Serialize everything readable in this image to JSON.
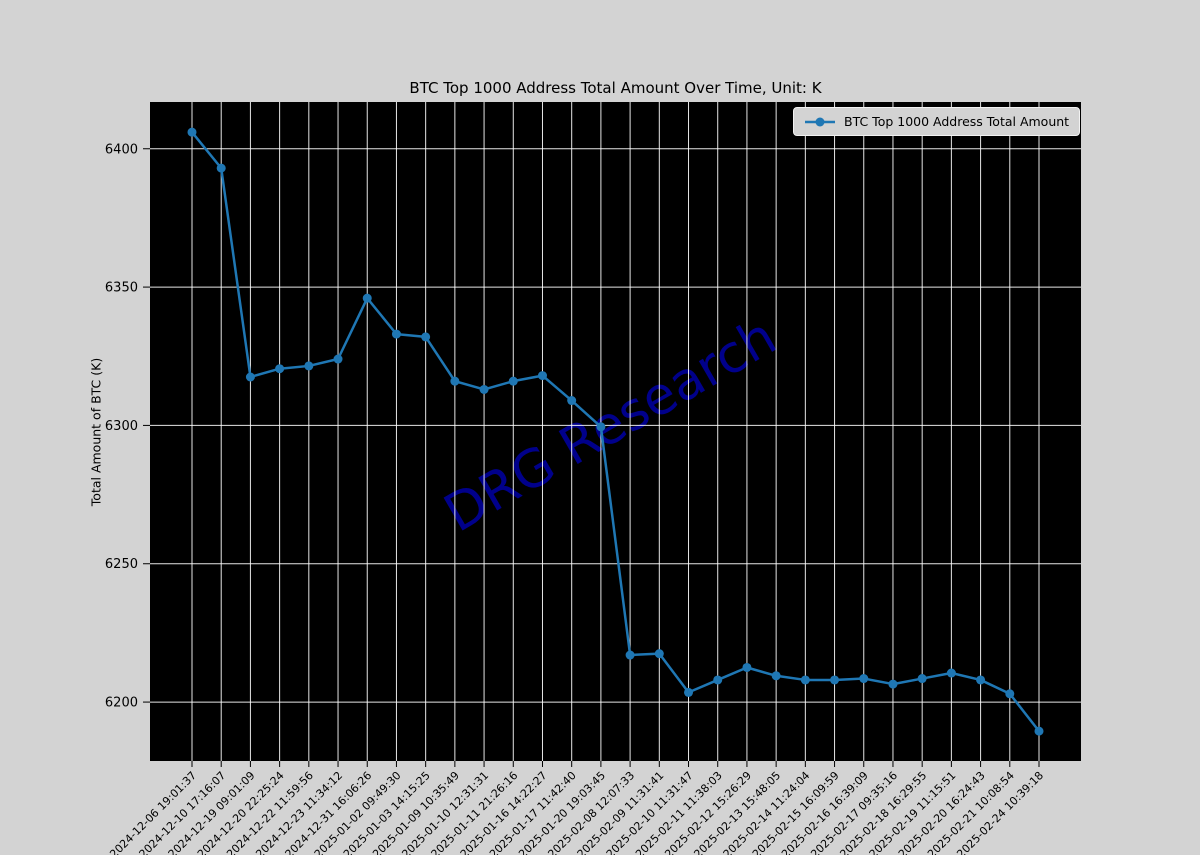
{
  "page": {
    "figure_bg": "#d3d3d3"
  },
  "watermark": {
    "text": "DRG Research",
    "color": "#00008b",
    "rotation_deg": -30,
    "font_size": 52
  },
  "chart_data": {
    "type": "line",
    "title": "BTC Top 1000 Address Total Amount Over Time, Unit: K",
    "ylabel": "Total Amount of BTC (K)",
    "xlabel": "",
    "grid": true,
    "figure_bg": "#d3d3d3",
    "axes_bg": "#000000",
    "grid_color": "#ffffff",
    "tick_color": "#000000",
    "text_color": "#000000",
    "ylim": [
      6178.7,
      6416.9
    ],
    "yticks": [
      6200,
      6250,
      6300,
      6350,
      6400
    ],
    "legend": {
      "position": "upper right",
      "entries": [
        "BTC Top 1000 Address Total Amount"
      ]
    },
    "categories": [
      "2024-12-06 19:01:37",
      "2024-12-10 17:16:07",
      "2024-12-19 09:01:09",
      "2024-12-20 22:25:24",
      "2024-12-22 11:59:56",
      "2024-12-23 11:34:12",
      "2024-12-31 16:06:26",
      "2025-01-02 09:49:30",
      "2025-01-03 14:15:25",
      "2025-01-09 10:35:49",
      "2025-01-10 12:31:31",
      "2025-01-11 21:26:16",
      "2025-01-16 14:22:27",
      "2025-01-17 11:42:40",
      "2025-01-20 19:03:45",
      "2025-02-08 12:07:33",
      "2025-02-09 11:31:41",
      "2025-02-10 11:31:47",
      "2025-02-11 11:38:03",
      "2025-02-12 15:26:29",
      "2025-02-13 15:48:05",
      "2025-02-14 11:24:04",
      "2025-02-15 16:09:59",
      "2025-02-16 16:39:09",
      "2025-02-17 09:35:16",
      "2025-02-18 16:29:55",
      "2025-02-19 11:15:51",
      "2025-02-20 16:24:43",
      "2025-02-21 10:08:54",
      "2025-02-24 10:39:18"
    ],
    "series": [
      {
        "name": "BTC Top 1000 Address Total Amount",
        "color": "#1f77b4",
        "marker": "circle",
        "values": [
          6406,
          6393,
          6317.5,
          6320.5,
          6321.5,
          6324,
          6346,
          6333,
          6332,
          6316,
          6313,
          6316,
          6318,
          6309,
          6299.5,
          6217,
          6217.5,
          6203.5,
          6208,
          6212.5,
          6209.5,
          6208,
          6208,
          6208.5,
          6206.5,
          6208.5,
          6210.5,
          6208,
          6203,
          6189.5
        ]
      }
    ]
  }
}
